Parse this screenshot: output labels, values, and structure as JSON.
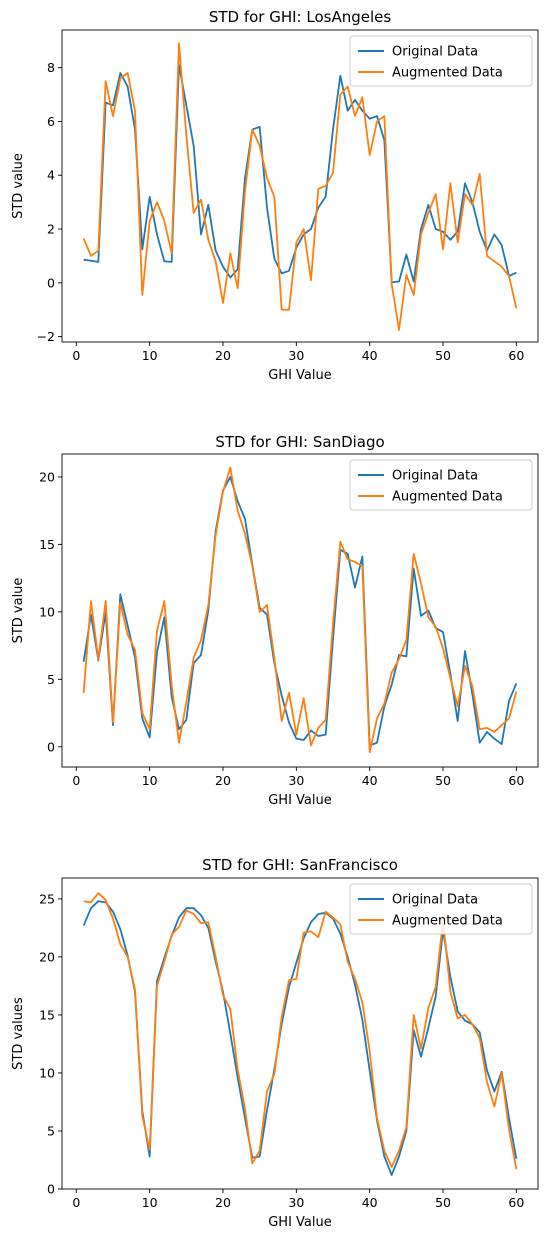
{
  "colors": {
    "original": "#1f77b4",
    "augmented": "#ff7f0e"
  },
  "chart_data": [
    {
      "type": "line",
      "title": "STD for GHI: LosAngeles",
      "xlabel": "GHI Value",
      "ylabel": "STD value",
      "xlim": [
        -1.95,
        62.95
      ],
      "ylim": [
        -2.2,
        9.4
      ],
      "xticks": [
        0,
        10,
        20,
        30,
        40,
        50,
        60
      ],
      "yticks": [
        -2,
        0,
        2,
        4,
        6,
        8
      ],
      "legend": "upper right",
      "x": [
        1,
        2,
        3,
        4,
        5,
        6,
        7,
        8,
        9,
        10,
        11,
        12,
        13,
        14,
        15,
        16,
        17,
        18,
        19,
        20,
        21,
        22,
        23,
        24,
        25,
        26,
        27,
        28,
        29,
        30,
        31,
        32,
        33,
        34,
        35,
        36,
        37,
        38,
        39,
        40,
        41,
        42,
        43,
        44,
        45,
        46,
        47,
        48,
        49,
        50,
        51,
        52,
        53,
        54,
        55,
        56,
        57,
        58,
        59,
        60
      ],
      "series": [
        {
          "name": "Original Data",
          "color_key": "original",
          "values": [
            0.86,
            0.82,
            0.78,
            6.7,
            6.6,
            7.8,
            7.3,
            5.7,
            1.25,
            3.2,
            1.8,
            0.8,
            0.78,
            8.1,
            6.6,
            5.1,
            1.8,
            2.9,
            1.2,
            0.6,
            0.2,
            0.5,
            3.9,
            5.7,
            5.8,
            2.8,
            0.9,
            0.35,
            0.45,
            1.3,
            1.8,
            2.0,
            2.8,
            3.2,
            5.7,
            7.7,
            6.4,
            6.8,
            6.4,
            6.1,
            6.2,
            5.3,
            0.02,
            0.05,
            1.05,
            0.05,
            2.0,
            2.9,
            2.0,
            1.9,
            1.6,
            1.9,
            3.7,
            3.0,
            1.9,
            1.2,
            1.8,
            1.4,
            0.25,
            0.38
          ]
        },
        {
          "name": "Augmented Data",
          "color_key": "augmented",
          "values": [
            1.65,
            1.0,
            1.2,
            7.5,
            6.2,
            7.6,
            7.8,
            6.4,
            -0.45,
            2.3,
            3.0,
            2.3,
            1.1,
            8.9,
            5.5,
            2.6,
            3.1,
            1.6,
            0.8,
            -0.75,
            1.1,
            -0.2,
            3.4,
            5.7,
            5.1,
            3.9,
            3.2,
            -1.0,
            -1.0,
            1.5,
            2.0,
            0.1,
            3.5,
            3.6,
            4.1,
            7.0,
            7.3,
            6.2,
            6.9,
            4.75,
            6.0,
            6.2,
            -0.05,
            -1.75,
            0.3,
            -0.45,
            1.8,
            2.6,
            3.3,
            1.25,
            3.7,
            1.5,
            3.3,
            2.9,
            4.05,
            1.0,
            0.8,
            0.6,
            0.25,
            -0.95
          ]
        }
      ]
    },
    {
      "type": "line",
      "title": "STD for GHI: SanDiago",
      "xlabel": "GHI Value",
      "ylabel": "STD value",
      "xlim": [
        -1.95,
        62.95
      ],
      "ylim": [
        -1.5,
        21.7
      ],
      "xticks": [
        0,
        10,
        20,
        30,
        40,
        50,
        60
      ],
      "yticks": [
        0,
        5,
        10,
        15,
        20
      ],
      "legend": "upper right",
      "x": [
        1,
        2,
        3,
        4,
        5,
        6,
        7,
        8,
        9,
        10,
        11,
        12,
        13,
        14,
        15,
        16,
        17,
        18,
        19,
        20,
        21,
        22,
        23,
        24,
        25,
        26,
        27,
        28,
        29,
        30,
        31,
        32,
        33,
        34,
        35,
        36,
        37,
        38,
        39,
        40,
        41,
        42,
        43,
        44,
        45,
        46,
        47,
        48,
        49,
        50,
        51,
        52,
        53,
        54,
        55,
        56,
        57,
        58,
        59,
        60
      ],
      "series": [
        {
          "name": "Original Data",
          "color_key": "original",
          "values": [
            6.3,
            9.8,
            6.4,
            10.0,
            1.6,
            11.3,
            9.0,
            6.6,
            2.1,
            0.7,
            7.0,
            9.6,
            3.7,
            1.3,
            2.0,
            6.2,
            6.8,
            10.1,
            16.0,
            19.0,
            20.0,
            18.2,
            16.9,
            13.5,
            10.3,
            9.8,
            6.2,
            3.8,
            1.8,
            0.6,
            0.5,
            1.2,
            0.8,
            0.9,
            8.0,
            14.6,
            14.3,
            11.8,
            14.1,
            0.1,
            0.3,
            3.0,
            4.6,
            6.8,
            6.7,
            13.2,
            9.7,
            10.1,
            8.8,
            8.5,
            5.4,
            1.9,
            7.1,
            3.9,
            0.3,
            1.1,
            0.6,
            0.2,
            3.4,
            4.7
          ]
        },
        {
          "name": "Augmented Data",
          "color_key": "augmented",
          "values": [
            4.0,
            10.8,
            6.5,
            10.8,
            1.8,
            10.7,
            8.3,
            7.2,
            2.5,
            1.3,
            8.6,
            10.8,
            4.6,
            0.3,
            3.3,
            6.6,
            7.9,
            10.5,
            15.7,
            18.9,
            20.7,
            17.5,
            15.8,
            13.4,
            10.0,
            10.5,
            6.6,
            1.9,
            4.0,
            0.9,
            3.6,
            0.1,
            1.4,
            2.0,
            9.1,
            15.2,
            13.9,
            13.7,
            13.4,
            -0.4,
            2.1,
            3.2,
            5.5,
            6.5,
            7.9,
            14.3,
            12.1,
            9.6,
            8.9,
            7.3,
            5.1,
            3.0,
            6.0,
            4.5,
            1.3,
            1.4,
            1.1,
            1.6,
            2.1,
            4.1
          ]
        }
      ]
    },
    {
      "type": "line",
      "title": "STD for GHI: SanFrancisco",
      "xlabel": "GHI Value",
      "ylabel": "STD values",
      "xlim": [
        -1.95,
        62.95
      ],
      "ylim": [
        0,
        26.8
      ],
      "xticks": [
        0,
        10,
        20,
        30,
        40,
        50,
        60
      ],
      "yticks": [
        0,
        5,
        10,
        15,
        20,
        25
      ],
      "legend": "upper right",
      "x": [
        1,
        2,
        3,
        4,
        5,
        6,
        7,
        8,
        9,
        10,
        11,
        12,
        13,
        14,
        15,
        16,
        17,
        18,
        19,
        20,
        21,
        22,
        23,
        24,
        25,
        26,
        27,
        28,
        29,
        30,
        31,
        32,
        33,
        34,
        35,
        36,
        37,
        38,
        39,
        40,
        41,
        42,
        43,
        44,
        45,
        46,
        47,
        48,
        49,
        50,
        51,
        52,
        53,
        54,
        55,
        56,
        57,
        58,
        59,
        60
      ],
      "series": [
        {
          "name": "Original Data",
          "color_key": "original",
          "values": [
            22.7,
            24.2,
            24.8,
            24.7,
            23.9,
            22.4,
            20.1,
            17.0,
            6.7,
            2.8,
            17.9,
            19.9,
            21.8,
            23.4,
            24.2,
            24.2,
            23.6,
            22.5,
            19.6,
            17.0,
            13.4,
            9.6,
            6.1,
            2.7,
            2.8,
            6.8,
            10.3,
            14.2,
            17.4,
            19.5,
            21.6,
            23.0,
            23.7,
            23.8,
            23.3,
            22.0,
            20.0,
            17.6,
            14.6,
            10.2,
            5.9,
            2.8,
            1.2,
            2.8,
            5.0,
            13.7,
            11.4,
            13.9,
            16.6,
            22.3,
            18.3,
            15.3,
            14.5,
            14.2,
            13.5,
            10.2,
            8.4,
            10.1,
            6.1,
            2.6
          ]
        },
        {
          "name": "Augmented Data",
          "color_key": "augmented",
          "values": [
            24.8,
            24.7,
            25.5,
            24.9,
            23.3,
            21.1,
            20.0,
            17.2,
            6.3,
            3.4,
            17.5,
            19.6,
            21.9,
            22.6,
            24.0,
            23.7,
            22.9,
            23.0,
            20.0,
            16.7,
            15.5,
            10.3,
            6.9,
            2.2,
            3.3,
            8.4,
            9.9,
            14.8,
            18.0,
            18.1,
            22.1,
            22.2,
            21.7,
            23.9,
            23.4,
            22.8,
            19.6,
            18.1,
            16.1,
            11.9,
            6.1,
            3.3,
            1.9,
            3.3,
            5.3,
            15.0,
            12.1,
            15.6,
            17.4,
            23.2,
            17.0,
            14.7,
            15.0,
            14.2,
            13.0,
            9.2,
            7.1,
            10.0,
            5.1,
            1.7
          ]
        }
      ]
    }
  ]
}
